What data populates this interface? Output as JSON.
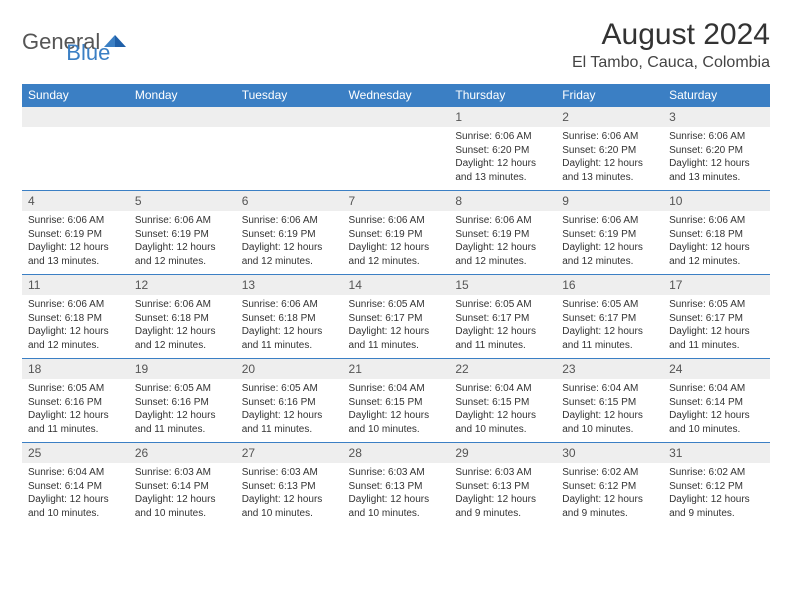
{
  "logo": {
    "general": "General",
    "blue": "Blue"
  },
  "title": "August 2024",
  "location": "El Tambo, Cauca, Colombia",
  "colors": {
    "header_bg": "#3b7fc4",
    "header_text": "#ffffff",
    "daynum_bg": "#eeeeee",
    "border": "#3b7fc4",
    "logo_blue": "#3b7fc4",
    "logo_gray": "#555555"
  },
  "day_headers": [
    "Sunday",
    "Monday",
    "Tuesday",
    "Wednesday",
    "Thursday",
    "Friday",
    "Saturday"
  ],
  "weeks": [
    [
      null,
      null,
      null,
      null,
      {
        "num": "1",
        "sunrise": "6:06 AM",
        "sunset": "6:20 PM",
        "daylight": "12 hours and 13 minutes."
      },
      {
        "num": "2",
        "sunrise": "6:06 AM",
        "sunset": "6:20 PM",
        "daylight": "12 hours and 13 minutes."
      },
      {
        "num": "3",
        "sunrise": "6:06 AM",
        "sunset": "6:20 PM",
        "daylight": "12 hours and 13 minutes."
      }
    ],
    [
      {
        "num": "4",
        "sunrise": "6:06 AM",
        "sunset": "6:19 PM",
        "daylight": "12 hours and 13 minutes."
      },
      {
        "num": "5",
        "sunrise": "6:06 AM",
        "sunset": "6:19 PM",
        "daylight": "12 hours and 12 minutes."
      },
      {
        "num": "6",
        "sunrise": "6:06 AM",
        "sunset": "6:19 PM",
        "daylight": "12 hours and 12 minutes."
      },
      {
        "num": "7",
        "sunrise": "6:06 AM",
        "sunset": "6:19 PM",
        "daylight": "12 hours and 12 minutes."
      },
      {
        "num": "8",
        "sunrise": "6:06 AM",
        "sunset": "6:19 PM",
        "daylight": "12 hours and 12 minutes."
      },
      {
        "num": "9",
        "sunrise": "6:06 AM",
        "sunset": "6:19 PM",
        "daylight": "12 hours and 12 minutes."
      },
      {
        "num": "10",
        "sunrise": "6:06 AM",
        "sunset": "6:18 PM",
        "daylight": "12 hours and 12 minutes."
      }
    ],
    [
      {
        "num": "11",
        "sunrise": "6:06 AM",
        "sunset": "6:18 PM",
        "daylight": "12 hours and 12 minutes."
      },
      {
        "num": "12",
        "sunrise": "6:06 AM",
        "sunset": "6:18 PM",
        "daylight": "12 hours and 12 minutes."
      },
      {
        "num": "13",
        "sunrise": "6:06 AM",
        "sunset": "6:18 PM",
        "daylight": "12 hours and 11 minutes."
      },
      {
        "num": "14",
        "sunrise": "6:05 AM",
        "sunset": "6:17 PM",
        "daylight": "12 hours and 11 minutes."
      },
      {
        "num": "15",
        "sunrise": "6:05 AM",
        "sunset": "6:17 PM",
        "daylight": "12 hours and 11 minutes."
      },
      {
        "num": "16",
        "sunrise": "6:05 AM",
        "sunset": "6:17 PM",
        "daylight": "12 hours and 11 minutes."
      },
      {
        "num": "17",
        "sunrise": "6:05 AM",
        "sunset": "6:17 PM",
        "daylight": "12 hours and 11 minutes."
      }
    ],
    [
      {
        "num": "18",
        "sunrise": "6:05 AM",
        "sunset": "6:16 PM",
        "daylight": "12 hours and 11 minutes."
      },
      {
        "num": "19",
        "sunrise": "6:05 AM",
        "sunset": "6:16 PM",
        "daylight": "12 hours and 11 minutes."
      },
      {
        "num": "20",
        "sunrise": "6:05 AM",
        "sunset": "6:16 PM",
        "daylight": "12 hours and 11 minutes."
      },
      {
        "num": "21",
        "sunrise": "6:04 AM",
        "sunset": "6:15 PM",
        "daylight": "12 hours and 10 minutes."
      },
      {
        "num": "22",
        "sunrise": "6:04 AM",
        "sunset": "6:15 PM",
        "daylight": "12 hours and 10 minutes."
      },
      {
        "num": "23",
        "sunrise": "6:04 AM",
        "sunset": "6:15 PM",
        "daylight": "12 hours and 10 minutes."
      },
      {
        "num": "24",
        "sunrise": "6:04 AM",
        "sunset": "6:14 PM",
        "daylight": "12 hours and 10 minutes."
      }
    ],
    [
      {
        "num": "25",
        "sunrise": "6:04 AM",
        "sunset": "6:14 PM",
        "daylight": "12 hours and 10 minutes."
      },
      {
        "num": "26",
        "sunrise": "6:03 AM",
        "sunset": "6:14 PM",
        "daylight": "12 hours and 10 minutes."
      },
      {
        "num": "27",
        "sunrise": "6:03 AM",
        "sunset": "6:13 PM",
        "daylight": "12 hours and 10 minutes."
      },
      {
        "num": "28",
        "sunrise": "6:03 AM",
        "sunset": "6:13 PM",
        "daylight": "12 hours and 10 minutes."
      },
      {
        "num": "29",
        "sunrise": "6:03 AM",
        "sunset": "6:13 PM",
        "daylight": "12 hours and 9 minutes."
      },
      {
        "num": "30",
        "sunrise": "6:02 AM",
        "sunset": "6:12 PM",
        "daylight": "12 hours and 9 minutes."
      },
      {
        "num": "31",
        "sunrise": "6:02 AM",
        "sunset": "6:12 PM",
        "daylight": "12 hours and 9 minutes."
      }
    ]
  ],
  "labels": {
    "sunrise": "Sunrise:",
    "sunset": "Sunset:",
    "daylight": "Daylight:"
  }
}
